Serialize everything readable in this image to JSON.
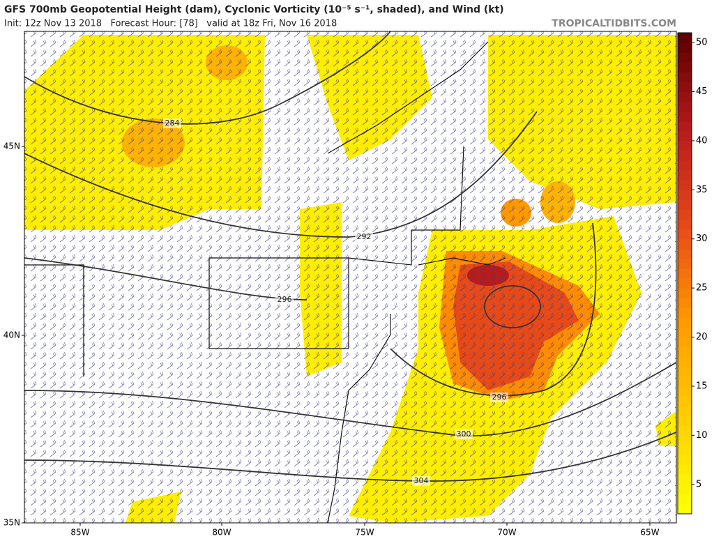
{
  "header": {
    "title": "GFS 700mb Geopotential Height (dam), Cyclonic Vorticity (10⁻⁵ s⁻¹, shaded), and Wind (kt)",
    "subtitle": "Init: 12z Nov 13 2018   Forecast Hour: [78]   valid at 18z Fri, Nov 16 2018",
    "source": "TROPICALTIDBITS.COM"
  },
  "map": {
    "lat_labels": [
      "45N",
      "40N",
      "35N"
    ],
    "lon_labels": [
      "85W",
      "80W",
      "75W",
      "70W",
      "65W"
    ],
    "contour_labels": [
      284,
      292,
      296,
      296,
      300,
      304
    ]
  },
  "colorbar": {
    "range": [
      2,
      51
    ],
    "ticks": [
      5,
      10,
      15,
      20,
      25,
      30,
      35,
      40,
      45,
      50
    ],
    "colors": [
      "#ffff00",
      "#ffcc00",
      "#ff9900",
      "#e64a19",
      "#b71c1c",
      "#5d0000"
    ]
  }
}
